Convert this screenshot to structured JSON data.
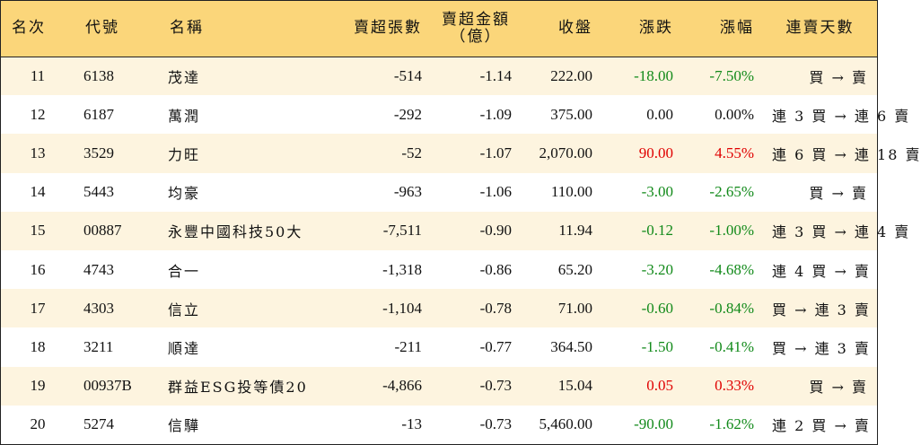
{
  "headers": {
    "rank": "名次",
    "code": "代號",
    "name": "名稱",
    "sell_volume": "賣超張數",
    "sell_amount_line1": "賣超金額",
    "sell_amount_line2": "（億）",
    "close": "收盤",
    "change": "漲跌",
    "change_pct": "漲幅",
    "streak": "連賣天數"
  },
  "colors": {
    "header_bg": "#fbd67a",
    "alt_row_bg": "#fdf4df",
    "up": "#e00000",
    "down": "#128a1a"
  },
  "rows": [
    {
      "rank": "11",
      "code": "6138",
      "name": "茂達",
      "sell_volume": "-514",
      "sell_amount": "-1.14",
      "close": "222.00",
      "change": "-18.00",
      "change_pct": "-7.50%",
      "trend": "neg",
      "streak": "買 → 賣"
    },
    {
      "rank": "12",
      "code": "6187",
      "name": "萬潤",
      "sell_volume": "-292",
      "sell_amount": "-1.09",
      "close": "375.00",
      "change": "0.00",
      "change_pct": "0.00%",
      "trend": "flat",
      "streak": "連 3 買 → 連 6 賣"
    },
    {
      "rank": "13",
      "code": "3529",
      "name": "力旺",
      "sell_volume": "-52",
      "sell_amount": "-1.07",
      "close": "2,070.00",
      "change": "90.00",
      "change_pct": "4.55%",
      "trend": "pos",
      "streak": "連 6 買 → 連 18 賣"
    },
    {
      "rank": "14",
      "code": "5443",
      "name": "均豪",
      "sell_volume": "-963",
      "sell_amount": "-1.06",
      "close": "110.00",
      "change": "-3.00",
      "change_pct": "-2.65%",
      "trend": "neg",
      "streak": "買 → 賣"
    },
    {
      "rank": "15",
      "code": "00887",
      "name": "永豐中國科技50大",
      "sell_volume": "-7,511",
      "sell_amount": "-0.90",
      "close": "11.94",
      "change": "-0.12",
      "change_pct": "-1.00%",
      "trend": "neg",
      "streak": "連 3 買 → 連 4 賣"
    },
    {
      "rank": "16",
      "code": "4743",
      "name": "合一",
      "sell_volume": "-1,318",
      "sell_amount": "-0.86",
      "close": "65.20",
      "change": "-3.20",
      "change_pct": "-4.68%",
      "trend": "neg",
      "streak": "連 4 買 → 賣"
    },
    {
      "rank": "17",
      "code": "4303",
      "name": "信立",
      "sell_volume": "-1,104",
      "sell_amount": "-0.78",
      "close": "71.00",
      "change": "-0.60",
      "change_pct": "-0.84%",
      "trend": "neg",
      "streak": "買 → 連 3 賣"
    },
    {
      "rank": "18",
      "code": "3211",
      "name": "順達",
      "sell_volume": "-211",
      "sell_amount": "-0.77",
      "close": "364.50",
      "change": "-1.50",
      "change_pct": "-0.41%",
      "trend": "neg",
      "streak": "買 → 連 3 賣"
    },
    {
      "rank": "19",
      "code": "00937B",
      "name": "群益ESG投等債20",
      "sell_volume": "-4,866",
      "sell_amount": "-0.73",
      "close": "15.04",
      "change": "0.05",
      "change_pct": "0.33%",
      "trend": "pos",
      "streak": "買 → 賣"
    },
    {
      "rank": "20",
      "code": "5274",
      "name": "信驊",
      "sell_volume": "-13",
      "sell_amount": "-0.73",
      "close": "5,460.00",
      "change": "-90.00",
      "change_pct": "-1.62%",
      "trend": "neg",
      "streak": "連 2 買 → 賣"
    }
  ]
}
